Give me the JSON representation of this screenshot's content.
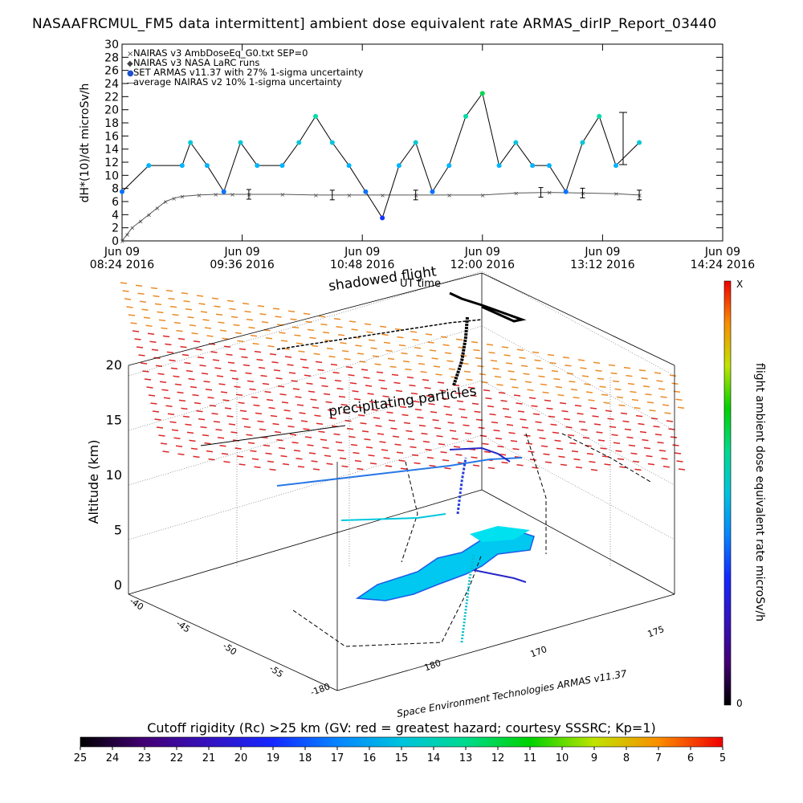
{
  "header": {
    "title": "NASAAFRCMUL_FM5 data intermittent] ambient dose equivalent rate ARMAS_dirIP_Report_03440"
  },
  "top_plot": {
    "ylabel": "dH*(10)/dt microSv/h",
    "legend": [
      "NAIRAS v3 AmbDoseEq_G0.txt SEP=0",
      "NAIRAS v3 NASA LaRC runs",
      "SET ARMAS v11.37 with 27% 1-sigma uncertainty",
      "average NAIRAS v2 10% 1-sigma uncertainty"
    ],
    "yticks": [
      "0",
      "2",
      "4",
      "6",
      "8",
      "10",
      "12",
      "14",
      "16",
      "18",
      "20",
      "22",
      "24",
      "26",
      "28",
      "30"
    ],
    "xticks": [
      {
        "date": "Jun 09",
        "time": "08:24 2016"
      },
      {
        "date": "Jun 09",
        "time": "09:36 2016"
      },
      {
        "date": "Jun 09",
        "time": "10:48 2016"
      },
      {
        "date": "Jun 09",
        "time": "12:00 2016"
      },
      {
        "date": "Jun 09",
        "time": "13:12 2016"
      },
      {
        "date": "Jun 09",
        "time": "14:24 2016"
      }
    ]
  },
  "globe": {
    "ylabel": "Altitude (km)",
    "zticks": [
      "0",
      "5",
      "10",
      "15",
      "20"
    ],
    "lat_ticks": [
      "-40",
      "-45",
      "-50",
      "-55"
    ],
    "lon_ticks": [
      "180",
      "170",
      "175"
    ],
    "lon_corner": "-180",
    "annotations": {
      "shadowed": "shadowed flight",
      "ut_time": "UT time",
      "precip": "precipitating particles",
      "credit": "Space Environment Technologies ARMAS v11.37"
    }
  },
  "colorbar_right": {
    "label": "flight ambient dose equivalent rate microSv/h",
    "top": "X",
    "bottom": "0"
  },
  "colorbar_bottom": {
    "title": "Cutoff rigidity (Rc) >25 km (GV: red = greatest hazard; courtesy SSSRC; Kp=1)",
    "ticks": [
      "25",
      "24",
      "23",
      "22",
      "21",
      "20",
      "19",
      "18",
      "17",
      "16",
      "15",
      "14",
      "13",
      "12",
      "11",
      "10",
      "9",
      "8",
      "7",
      "6",
      "5"
    ]
  },
  "chart_data": {
    "type": "scatter",
    "x_unit": "UT time, Jun 09 2016",
    "xlim": [
      "08:24",
      "14:24"
    ],
    "ylim": [
      0,
      30
    ],
    "series": [
      {
        "name": "NAIRAS v3 AmbDoseEq_G0.txt SEP=0",
        "color": "#404040",
        "x": [
          "08:24",
          "08:27",
          "08:30",
          "08:35",
          "08:40",
          "08:45",
          "08:50",
          "08:55",
          "09:00",
          "09:10",
          "09:20",
          "09:30",
          "09:40",
          "10:00",
          "10:20",
          "10:40",
          "11:00",
          "11:20",
          "11:40",
          "12:00",
          "12:20",
          "12:40",
          "13:00",
          "13:20",
          "13:34"
        ],
        "y": [
          0,
          1,
          2,
          3,
          4,
          5,
          6,
          6.5,
          6.8,
          7,
          7.1,
          7.1,
          7.1,
          7.1,
          7,
          7,
          7,
          7,
          7,
          7,
          7.3,
          7.4,
          7.3,
          7.2,
          7
        ]
      },
      {
        "name": "SET ARMAS v11.37 with 27% 1-sigma uncertainty",
        "color": "#1e90ff",
        "x": [
          "08:24",
          "08:40",
          "09:00",
          "09:05",
          "09:15",
          "09:25",
          "09:35",
          "09:45",
          "10:00",
          "10:10",
          "10:20",
          "10:30",
          "10:40",
          "10:50",
          "11:00",
          "11:10",
          "11:20",
          "11:30",
          "11:40",
          "11:50",
          "12:00",
          "12:10",
          "12:20",
          "12:30",
          "12:40",
          "12:50",
          "13:00",
          "13:10",
          "13:20",
          "13:34"
        ],
        "y": [
          7.5,
          11.5,
          11.5,
          15,
          11.5,
          7.5,
          15,
          11.5,
          11.5,
          15,
          19,
          15,
          11.5,
          7.5,
          3.5,
          11.5,
          15,
          7.5,
          11.5,
          19,
          22.5,
          11.5,
          15,
          11.5,
          11.5,
          7.5,
          15,
          19,
          11.5,
          15
        ]
      },
      {
        "name": "average NAIRAS v2 10% 1-sigma uncertainty",
        "color": "#000000",
        "x": [
          "09:40",
          "10:30",
          "11:20",
          "12:35",
          "13:00",
          "13:34"
        ],
        "y": [
          7.1,
          7,
          7,
          7.4,
          7.3,
          7
        ]
      }
    ]
  }
}
